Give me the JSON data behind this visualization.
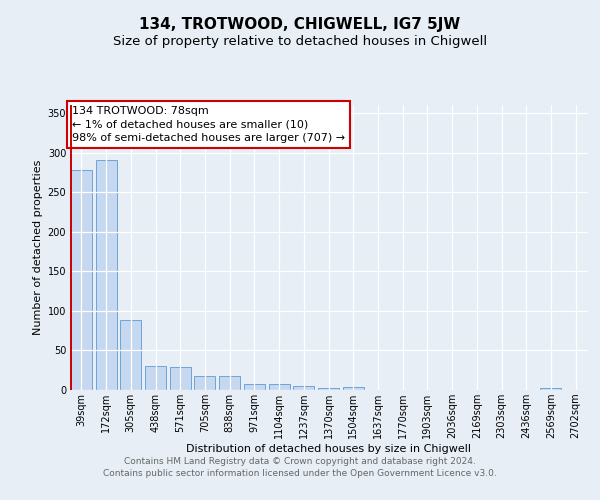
{
  "title": "134, TROTWOOD, CHIGWELL, IG7 5JW",
  "subtitle": "Size of property relative to detached houses in Chigwell",
  "xlabel": "Distribution of detached houses by size in Chigwell",
  "ylabel": "Number of detached properties",
  "categories": [
    "39sqm",
    "172sqm",
    "305sqm",
    "438sqm",
    "571sqm",
    "705sqm",
    "838sqm",
    "971sqm",
    "1104sqm",
    "1237sqm",
    "1370sqm",
    "1504sqm",
    "1637sqm",
    "1770sqm",
    "1903sqm",
    "2036sqm",
    "2169sqm",
    "2303sqm",
    "2436sqm",
    "2569sqm",
    "2702sqm"
  ],
  "values": [
    278,
    290,
    88,
    30,
    29,
    18,
    18,
    7,
    7,
    5,
    3,
    4,
    0,
    0,
    0,
    0,
    0,
    0,
    0,
    3,
    0
  ],
  "bar_color": "#c5d8f0",
  "bar_edge_color": "#5b9bd5",
  "red_line_color": "#cc0000",
  "annotation_text": "134 TROTWOOD: 78sqm\n← 1% of detached houses are smaller (10)\n98% of semi-detached houses are larger (707) →",
  "annotation_box_facecolor": "#ffffff",
  "annotation_box_edgecolor": "#cc0000",
  "ylim": [
    0,
    360
  ],
  "yticks": [
    0,
    50,
    100,
    150,
    200,
    250,
    300,
    350
  ],
  "background_color": "#e8eef6",
  "grid_color": "#ffffff",
  "footer_text": "Contains HM Land Registry data © Crown copyright and database right 2024.\nContains public sector information licensed under the Open Government Licence v3.0.",
  "title_fontsize": 11,
  "subtitle_fontsize": 9.5,
  "xlabel_fontsize": 8,
  "ylabel_fontsize": 8,
  "tick_fontsize": 7,
  "annotation_fontsize": 8,
  "footer_fontsize": 6.5
}
